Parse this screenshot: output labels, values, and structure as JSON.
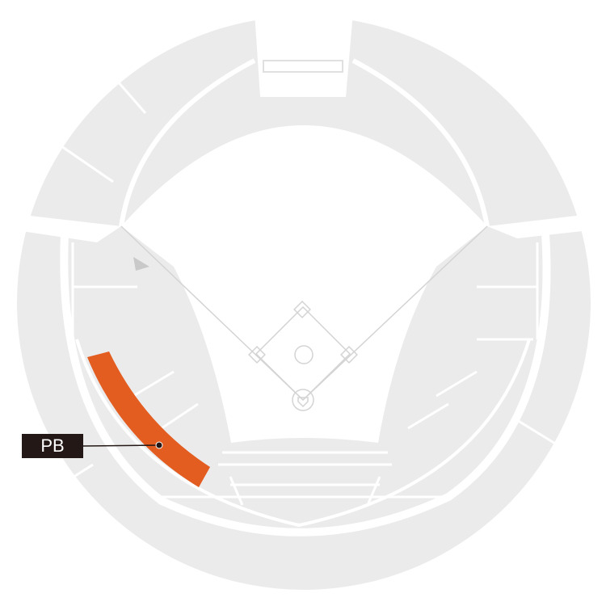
{
  "section": {
    "label": "PB",
    "highlight_color": "#e35c20"
  },
  "colors": {
    "stands": "#ebebeb",
    "lines": "#d9d9d9",
    "label_bg": "#231815"
  }
}
